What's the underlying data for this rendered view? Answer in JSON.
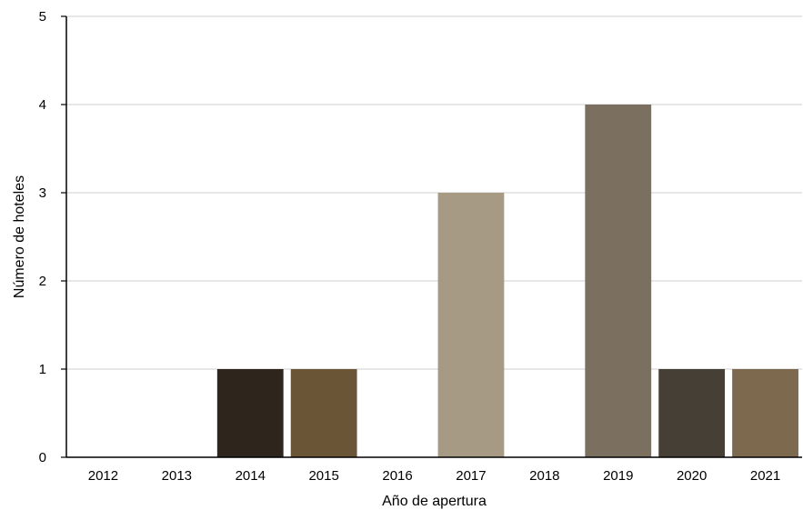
{
  "chart_data": {
    "type": "bar",
    "xlabel": "Año de apertura",
    "ylabel": "Número de hoteles",
    "ylim": [
      0,
      5
    ],
    "yticks": [
      0,
      1,
      2,
      3,
      4,
      5
    ],
    "grid": true,
    "categories": [
      "2012",
      "2013",
      "2014",
      "2015",
      "2016",
      "2017",
      "2018",
      "2019",
      "2020",
      "2021"
    ],
    "values": [
      0,
      0,
      1,
      1,
      0,
      3,
      0,
      4,
      1,
      1
    ],
    "colors": [
      "#6b5a45",
      "#6b5a45",
      "#2e261c",
      "#6a5636",
      "#6b5a45",
      "#a69a84",
      "#6b5a45",
      "#7b7060",
      "#463f36",
      "#7d6a4e"
    ]
  }
}
